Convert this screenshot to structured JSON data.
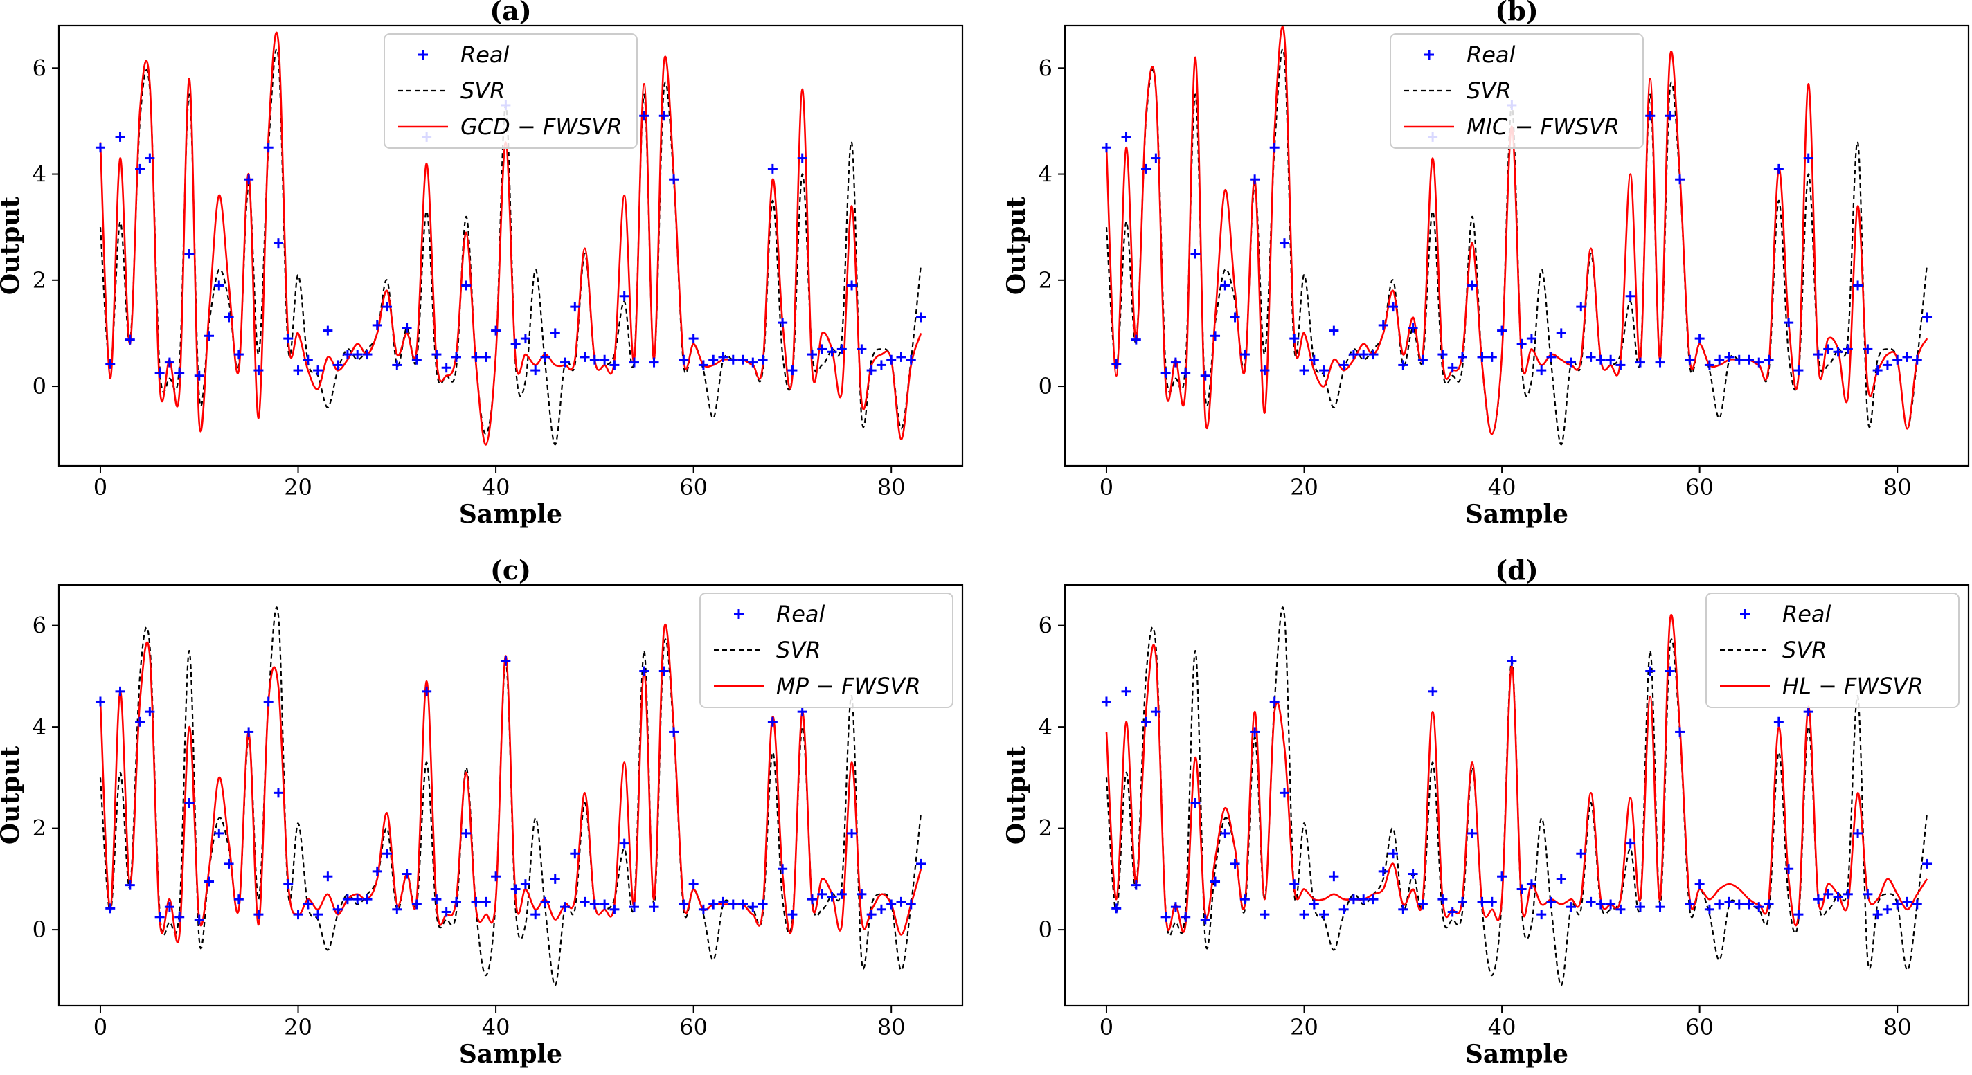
{
  "colors": {
    "real": "#0000ff",
    "svr": "#000000",
    "fwsvr": "#ff0000",
    "axis": "#000000",
    "background": "#ffffff"
  },
  "shared": {
    "xlabel": "Sample",
    "ylabel": "Output",
    "xticks": [
      0,
      20,
      40,
      60,
      80
    ],
    "yticks": [
      0,
      2,
      4,
      6
    ],
    "xlim": [
      -4.2,
      87.2
    ],
    "ylim": [
      -1.5,
      6.8
    ],
    "real": {
      "x": [
        0,
        1,
        2,
        3,
        4,
        5,
        6,
        7,
        8,
        9,
        10,
        11,
        12,
        13,
        14,
        15,
        16,
        17,
        18,
        19,
        20,
        21,
        22,
        23,
        24,
        25,
        26,
        27,
        28,
        29,
        30,
        31,
        32,
        33,
        34,
        35,
        36,
        37,
        38,
        39,
        40,
        41,
        42,
        43,
        44,
        45,
        46,
        47,
        48,
        49,
        50,
        51,
        52,
        53,
        54,
        55,
        56,
        57,
        58,
        59,
        60,
        61,
        62,
        63,
        64,
        65,
        66,
        67,
        68,
        69,
        70,
        71,
        72,
        73,
        74,
        75,
        76,
        77,
        78,
        79,
        80,
        81,
        82,
        83
      ],
      "y": [
        4.5,
        0.42,
        4.7,
        0.88,
        4.1,
        4.3,
        0.25,
        0.45,
        0.25,
        2.5,
        0.2,
        0.95,
        1.9,
        1.3,
        0.6,
        3.9,
        0.3,
        4.5,
        2.7,
        0.9,
        0.3,
        0.5,
        0.3,
        1.05,
        0.4,
        0.6,
        0.6,
        0.6,
        1.15,
        1.5,
        0.4,
        1.1,
        0.5,
        4.7,
        0.6,
        0.35,
        0.55,
        1.9,
        0.55,
        0.55,
        1.05,
        5.3,
        0.8,
        0.9,
        0.3,
        0.55,
        1.0,
        0.45,
        1.5,
        0.55,
        0.5,
        0.5,
        0.4,
        1.7,
        0.45,
        5.1,
        0.45,
        5.1,
        3.9,
        0.5,
        0.9,
        0.4,
        0.5,
        0.55,
        0.5,
        0.5,
        0.45,
        0.5,
        4.1,
        1.2,
        0.3,
        4.3,
        0.6,
        0.7,
        0.65,
        0.7,
        1.9,
        0.7,
        0.3,
        0.4,
        0.5,
        0.55,
        0.5,
        1.3
      ]
    },
    "svr": {
      "x": [
        0,
        1,
        2,
        3,
        4,
        5,
        6,
        7,
        8,
        9,
        10,
        11,
        12,
        13,
        14,
        15,
        16,
        17,
        18,
        19,
        20,
        21,
        22,
        23,
        24,
        25,
        26,
        27,
        28,
        29,
        30,
        31,
        32,
        33,
        34,
        35,
        36,
        37,
        38,
        39,
        40,
        41,
        42,
        43,
        44,
        45,
        46,
        47,
        48,
        49,
        50,
        51,
        52,
        53,
        54,
        55,
        56,
        57,
        58,
        59,
        60,
        61,
        62,
        63,
        64,
        65,
        66,
        67,
        68,
        69,
        70,
        71,
        72,
        73,
        74,
        75,
        76,
        77,
        78,
        79,
        80,
        81,
        82,
        83
      ],
      "y": [
        3.0,
        0.35,
        3.1,
        0.85,
        5.0,
        5.6,
        0.35,
        0.15,
        0.4,
        5.5,
        -0.2,
        1.2,
        2.2,
        1.6,
        0.4,
        3.8,
        0.6,
        4.5,
        6.2,
        0.7,
        2.1,
        0.45,
        0.2,
        -0.4,
        0.3,
        0.7,
        0.5,
        0.7,
        1.0,
        2.0,
        0.4,
        1.1,
        0.5,
        3.3,
        0.3,
        0.2,
        0.35,
        3.2,
        0.4,
        -0.9,
        0.6,
        5.3,
        0.4,
        0.1,
        2.2,
        0.4,
        -1.1,
        0.45,
        0.4,
        2.5,
        0.5,
        0.4,
        0.6,
        1.6,
        0.5,
        5.5,
        0.5,
        5.6,
        3.9,
        0.4,
        0.8,
        0.3,
        -0.6,
        0.5,
        0.5,
        0.5,
        0.4,
        0.3,
        3.5,
        0.6,
        0.2,
        4.0,
        0.6,
        0.4,
        0.7,
        0.9,
        4.6,
        -0.6,
        0.5,
        0.7,
        0.5,
        -0.8,
        0.5,
        2.3
      ]
    }
  },
  "panels": [
    {
      "title": "(a)",
      "legend": {
        "real": "Real",
        "svr": "SVR",
        "model": "GCD − FWSVR",
        "position": "top-center"
      },
      "chart_data": {
        "type": "line",
        "series": [
          {
            "name": "GCD − FWSVR",
            "x": [
              0,
              1,
              2,
              3,
              4,
              5,
              6,
              7,
              8,
              9,
              10,
              11,
              12,
              13,
              14,
              15,
              16,
              17,
              18,
              19,
              20,
              21,
              22,
              23,
              24,
              25,
              26,
              27,
              28,
              29,
              30,
              31,
              32,
              33,
              34,
              35,
              36,
              37,
              38,
              39,
              40,
              41,
              42,
              43,
              44,
              45,
              46,
              47,
              48,
              49,
              50,
              51,
              52,
              53,
              54,
              55,
              56,
              57,
              58,
              59,
              60,
              61,
              62,
              63,
              64,
              65,
              66,
              67,
              68,
              69,
              70,
              71,
              72,
              73,
              74,
              75,
              76,
              77,
              78,
              79,
              80,
              81,
              82,
              83
            ],
            "y": [
              4.6,
              0.15,
              4.3,
              0.8,
              5.2,
              5.7,
              0.0,
              0.5,
              -0.1,
              5.8,
              -0.7,
              1.4,
              3.6,
              1.9,
              0.3,
              4.0,
              -0.6,
              4.7,
              6.5,
              0.9,
              1.0,
              0.3,
              -0.05,
              0.55,
              0.3,
              0.5,
              0.8,
              0.6,
              1.0,
              1.8,
              0.6,
              1.0,
              0.7,
              4.2,
              0.5,
              0.2,
              0.6,
              2.9,
              0.4,
              -1.1,
              0.6,
              4.6,
              0.5,
              0.6,
              0.4,
              0.6,
              0.4,
              0.4,
              0.5,
              2.6,
              0.5,
              0.4,
              0.5,
              3.6,
              0.5,
              5.7,
              0.5,
              6.1,
              4.0,
              0.5,
              0.8,
              0.4,
              0.4,
              0.5,
              0.5,
              0.5,
              0.4,
              0.4,
              3.9,
              1.2,
              0.2,
              5.6,
              0.3,
              1.0,
              0.7,
              -0.1,
              3.4,
              -0.3,
              0.4,
              0.6,
              0.5,
              -1.0,
              0.4,
              1.0
            ]
          }
        ]
      }
    },
    {
      "title": "(b)",
      "legend": {
        "real": "Real",
        "svr": "SVR",
        "model": "MIC − FWSVR",
        "position": "top-center"
      },
      "chart_data": {
        "type": "line",
        "series": [
          {
            "name": "MIC − FWSVR",
            "x": [
              0,
              1,
              2,
              3,
              4,
              5,
              6,
              7,
              8,
              9,
              10,
              11,
              12,
              13,
              14,
              15,
              16,
              17,
              18,
              19,
              20,
              21,
              22,
              23,
              24,
              25,
              26,
              27,
              28,
              29,
              30,
              31,
              32,
              33,
              34,
              35,
              36,
              37,
              38,
              39,
              40,
              41,
              42,
              43,
              44,
              45,
              46,
              47,
              48,
              49,
              50,
              51,
              52,
              53,
              54,
              55,
              56,
              57,
              58,
              59,
              60,
              61,
              62,
              63,
              64,
              65,
              66,
              67,
              68,
              69,
              70,
              71,
              72,
              73,
              74,
              75,
              76,
              77,
              78,
              79,
              80,
              81,
              82,
              83
            ],
            "y": [
              4.5,
              0.2,
              4.5,
              0.85,
              5.1,
              5.6,
              0.0,
              0.5,
              -0.05,
              6.2,
              -0.6,
              1.3,
              3.7,
              1.8,
              0.3,
              3.9,
              -0.5,
              4.8,
              6.6,
              0.9,
              1.0,
              0.3,
              0.0,
              0.5,
              0.3,
              0.5,
              0.8,
              0.6,
              1.0,
              1.8,
              0.6,
              1.3,
              0.6,
              4.3,
              0.5,
              0.3,
              0.6,
              2.7,
              0.4,
              -0.9,
              0.6,
              4.9,
              0.5,
              0.7,
              0.4,
              0.6,
              0.5,
              0.4,
              0.5,
              2.6,
              0.5,
              0.4,
              0.5,
              4.0,
              0.5,
              5.8,
              0.5,
              6.2,
              4.0,
              0.5,
              0.8,
              0.4,
              0.4,
              0.5,
              0.5,
              0.5,
              0.4,
              0.4,
              4.1,
              1.2,
              0.2,
              5.7,
              0.4,
              0.9,
              0.7,
              -0.2,
              3.4,
              0.0,
              0.3,
              0.6,
              0.5,
              -0.8,
              0.5,
              0.9
            ]
          }
        ]
      }
    },
    {
      "title": "(c)",
      "legend": {
        "real": "Real",
        "svr": "SVR",
        "model": "MP − FWSVR",
        "position": "top-right"
      },
      "chart_data": {
        "type": "line",
        "series": [
          {
            "name": "MP − FWSVR",
            "x": [
              0,
              1,
              2,
              3,
              4,
              5,
              6,
              7,
              8,
              9,
              10,
              11,
              12,
              13,
              14,
              15,
              16,
              17,
              18,
              19,
              20,
              21,
              22,
              23,
              24,
              25,
              26,
              27,
              28,
              29,
              30,
              31,
              32,
              33,
              34,
              35,
              36,
              37,
              38,
              39,
              40,
              41,
              42,
              43,
              44,
              45,
              46,
              47,
              48,
              49,
              50,
              51,
              52,
              53,
              54,
              55,
              56,
              57,
              58,
              59,
              60,
              61,
              62,
              63,
              64,
              65,
              66,
              67,
              68,
              69,
              70,
              71,
              72,
              73,
              74,
              75,
              76,
              77,
              78,
              79,
              80,
              81,
              82,
              83
            ],
            "y": [
              4.5,
              0.4,
              4.7,
              0.9,
              4.5,
              5.4,
              0.2,
              0.6,
              -0.1,
              4.0,
              0.2,
              1.2,
              3.0,
              1.7,
              0.4,
              3.9,
              0.1,
              4.5,
              4.8,
              0.9,
              0.3,
              0.6,
              0.4,
              0.7,
              0.3,
              0.6,
              0.7,
              0.6,
              1.0,
              2.3,
              0.5,
              1.1,
              0.6,
              4.9,
              0.5,
              0.3,
              0.6,
              3.1,
              0.4,
              0.3,
              0.6,
              5.4,
              0.6,
              0.8,
              0.4,
              0.6,
              0.2,
              0.5,
              0.6,
              2.7,
              0.5,
              0.4,
              0.5,
              3.3,
              0.5,
              5.1,
              0.6,
              5.9,
              4.0,
              0.5,
              0.8,
              0.4,
              0.5,
              0.5,
              0.5,
              0.5,
              0.3,
              0.4,
              4.2,
              1.1,
              0.1,
              4.3,
              0.5,
              1.0,
              0.7,
              0.1,
              3.3,
              0.2,
              0.4,
              0.7,
              0.5,
              -0.1,
              0.5,
              1.2
            ]
          }
        ]
      }
    },
    {
      "title": "(d)",
      "legend": {
        "real": "Real",
        "svr": "SVR",
        "model": "HL − FWSVR",
        "position": "top-right"
      },
      "chart_data": {
        "type": "line",
        "series": [
          {
            "name": "HL − FWSVR",
            "x": [
              0,
              1,
              2,
              3,
              4,
              5,
              6,
              7,
              8,
              9,
              10,
              11,
              12,
              13,
              14,
              15,
              16,
              17,
              18,
              19,
              20,
              21,
              22,
              23,
              24,
              25,
              26,
              27,
              28,
              29,
              30,
              31,
              32,
              33,
              34,
              35,
              36,
              37,
              38,
              39,
              40,
              41,
              42,
              43,
              44,
              45,
              46,
              47,
              48,
              49,
              50,
              51,
              52,
              53,
              54,
              55,
              56,
              57,
              58,
              59,
              60,
              61,
              62,
              63,
              64,
              65,
              66,
              67,
              68,
              69,
              70,
              71,
              72,
              73,
              74,
              75,
              76,
              77,
              78,
              79,
              80,
              81,
              82,
              83
            ],
            "y": [
              3.9,
              0.6,
              4.1,
              0.9,
              4.3,
              5.4,
              0.3,
              0.5,
              0.1,
              3.4,
              0.3,
              1.4,
              2.4,
              1.6,
              0.5,
              4.3,
              0.6,
              4.3,
              3.6,
              0.8,
              0.8,
              0.6,
              0.6,
              0.7,
              0.6,
              0.6,
              0.6,
              0.7,
              0.8,
              1.3,
              0.5,
              0.8,
              0.6,
              4.3,
              0.6,
              0.4,
              0.6,
              3.3,
              0.5,
              0.4,
              0.6,
              5.2,
              0.5,
              0.9,
              0.5,
              0.6,
              0.5,
              0.6,
              0.6,
              2.7,
              0.6,
              0.5,
              0.6,
              2.6,
              0.6,
              4.6,
              0.6,
              6.1,
              4.0,
              0.6,
              0.8,
              0.6,
              0.8,
              0.9,
              0.8,
              0.6,
              0.5,
              0.6,
              4.0,
              1.0,
              0.3,
              4.4,
              0.6,
              0.9,
              0.7,
              0.5,
              2.7,
              0.7,
              0.6,
              1.0,
              0.7,
              0.4,
              0.7,
              1.0
            ]
          }
        ]
      }
    }
  ]
}
